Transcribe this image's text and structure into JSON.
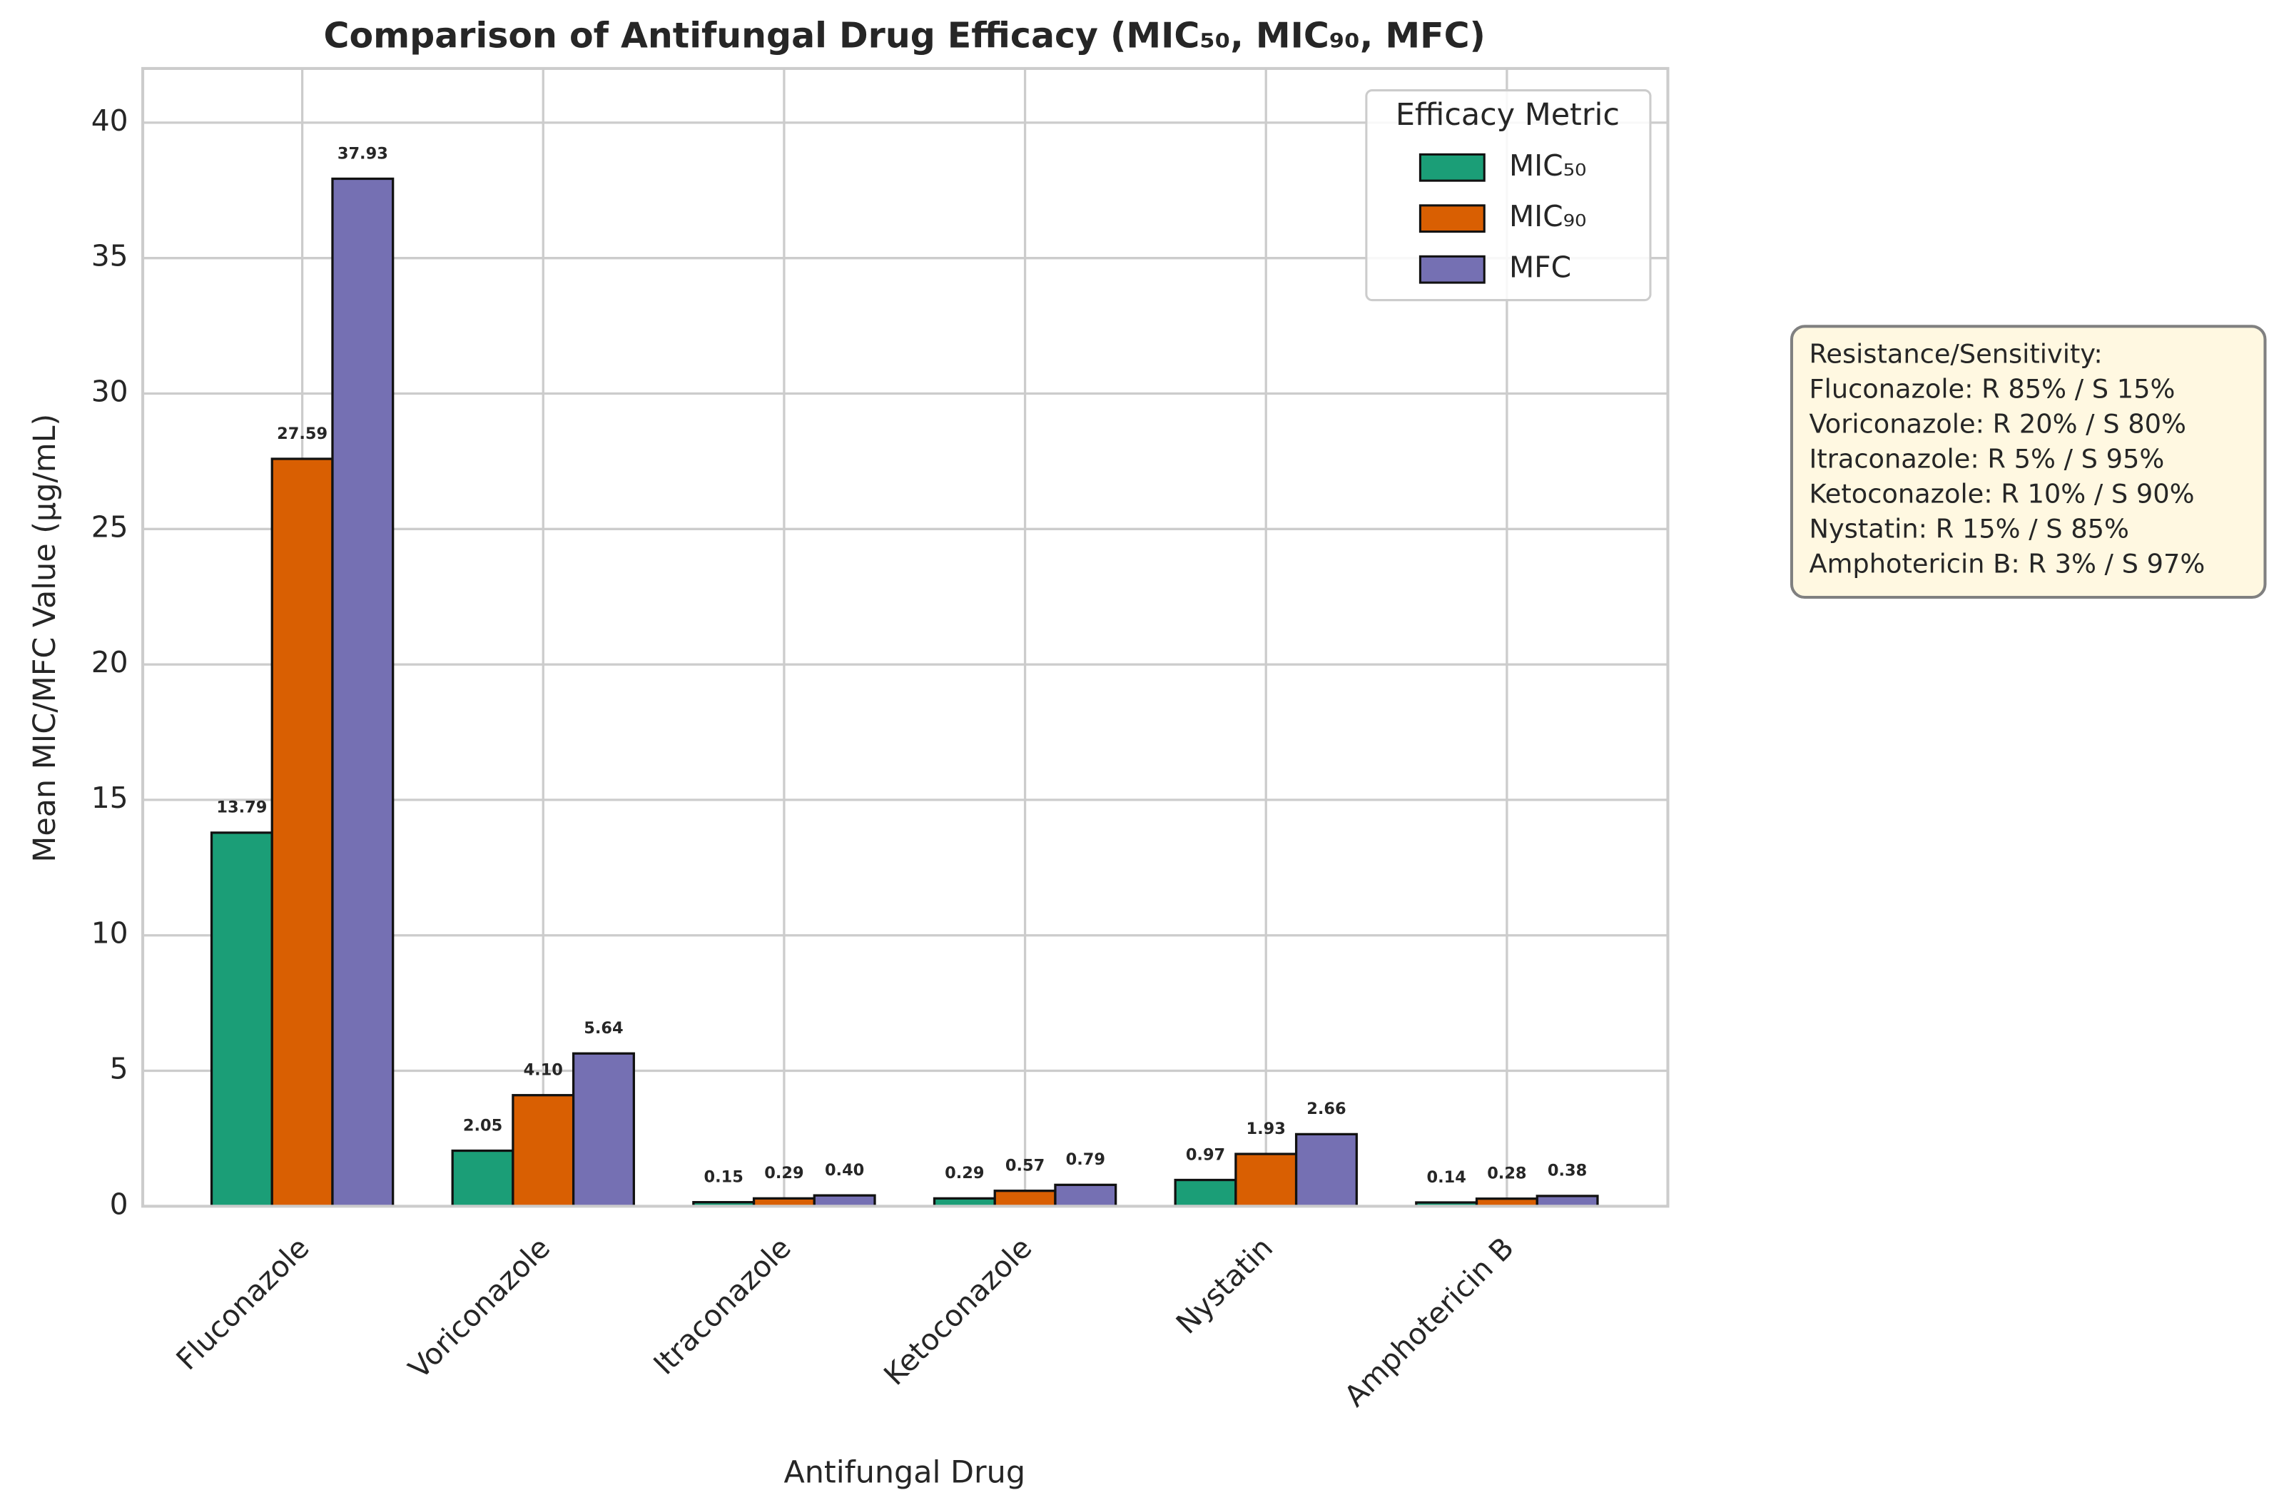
{
  "chart_data": {
    "type": "bar",
    "title": "Comparison of Antifungal Drug Efficacy (MIC₅₀, MIC₉₀, MFC)",
    "x_label": "Antifungal Drug",
    "y_label": "Mean MIC/MFC Value (µg/mL)",
    "categories": [
      "Fluconazole",
      "Voriconazole",
      "Itraconazole",
      "Ketoconazole",
      "Nystatin",
      "Amphotericin B"
    ],
    "series": [
      {
        "name": "MIC₅₀",
        "color": "#1b9e77",
        "values": [
          13.79,
          2.05,
          0.15,
          0.29,
          0.97,
          0.14
        ],
        "value_labels": [
          "13.79",
          "2.05",
          "0.15",
          "0.29",
          "0.97",
          "0.14"
        ]
      },
      {
        "name": "MIC₉₀",
        "color": "#d95f02",
        "values": [
          27.59,
          4.1,
          0.29,
          0.57,
          1.93,
          0.28
        ],
        "value_labels": [
          "27.59",
          "4.10",
          "0.29",
          "0.57",
          "1.93",
          "0.28"
        ]
      },
      {
        "name": "MFC",
        "color": "#7570b3",
        "values": [
          37.93,
          5.64,
          0.4,
          0.79,
          2.66,
          0.38
        ],
        "value_labels": [
          "37.93",
          "5.64",
          "0.40",
          "0.79",
          "2.66",
          "0.38"
        ]
      }
    ],
    "ylim": [
      0,
      42
    ],
    "yticks": [
      0,
      5,
      10,
      15,
      20,
      25,
      30,
      35,
      40
    ],
    "grid": true,
    "legend": {
      "title": "Efficacy Metric",
      "position": "upper right"
    },
    "annotation": {
      "title": "Resistance/Sensitivity:",
      "lines": [
        "Fluconazole: R 85% / S 15%",
        "Voriconazole: R 20% / S 80%",
        "Itraconazole: R 5% / S 95%",
        "Ketoconazole: R 10% / S 90%",
        "Nystatin: R 15% / S 85%",
        "Amphotericin B: R 3% / S 97%"
      ]
    }
  }
}
